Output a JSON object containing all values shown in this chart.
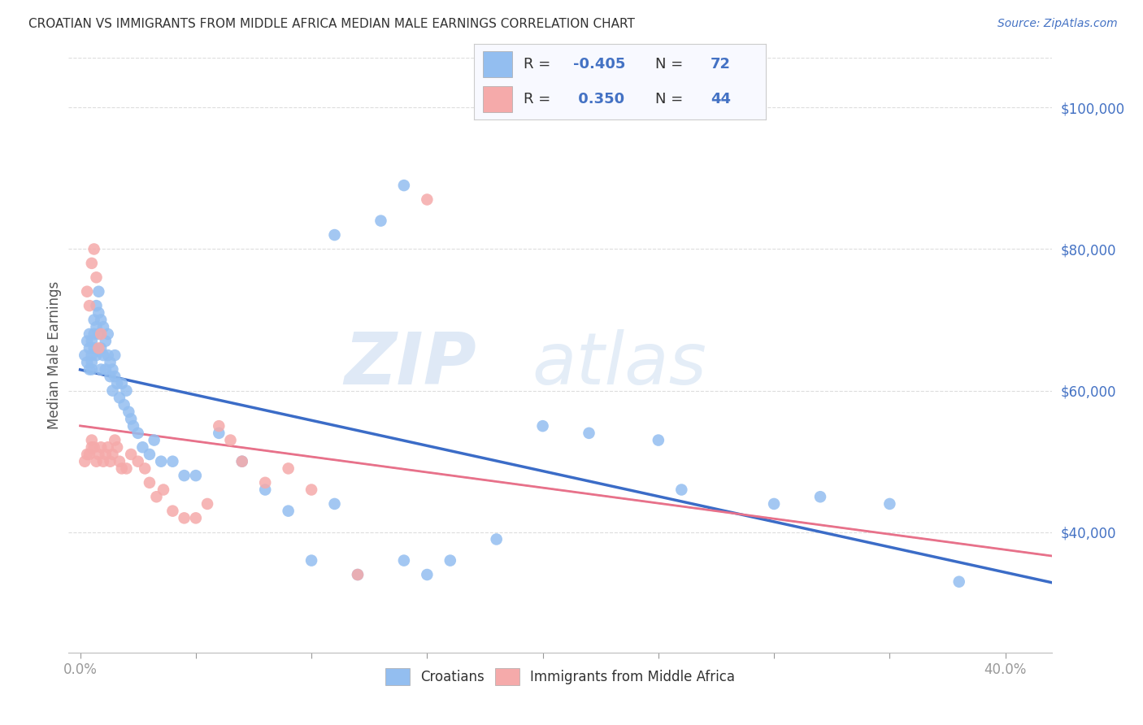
{
  "title": "CROATIAN VS IMMIGRANTS FROM MIDDLE AFRICA MEDIAN MALE EARNINGS CORRELATION CHART",
  "source": "Source: ZipAtlas.com",
  "ylabel": "Median Male Earnings",
  "xtick_show_labels": [
    0.0,
    0.4
  ],
  "xtick_show_strs": [
    "0.0%",
    "40.0%"
  ],
  "xtick_minor": [
    0.05,
    0.1,
    0.15,
    0.2,
    0.25,
    0.3,
    0.35
  ],
  "ytick_labels": [
    "$40,000",
    "$60,000",
    "$80,000",
    "$100,000"
  ],
  "ytick_vals": [
    40000,
    60000,
    80000,
    100000
  ],
  "ylim": [
    23000,
    107000
  ],
  "xlim": [
    -0.005,
    0.42
  ],
  "blue_color": "#93BEF0",
  "pink_color": "#F5AAAA",
  "blue_line_color": "#3B6CC7",
  "pink_line_color": "#E8718A",
  "gray_dashed_color": "#BBBBBB",
  "R_blue": -0.405,
  "N_blue": 72,
  "R_pink": 0.35,
  "N_pink": 44,
  "watermark_zip": "ZIP",
  "watermark_atlas": "atlas",
  "background_color": "#FFFFFF",
  "grid_color": "#DDDDDD",
  "title_color": "#333333",
  "axis_label_color": "#555555",
  "ytick_color": "#4472C4",
  "source_color": "#4472C4",
  "legend_text_color": "#333333",
  "legend_num_color": "#4472C4",
  "blue_scatter_x": [
    0.002,
    0.003,
    0.003,
    0.004,
    0.004,
    0.004,
    0.005,
    0.005,
    0.005,
    0.005,
    0.006,
    0.006,
    0.006,
    0.007,
    0.007,
    0.007,
    0.008,
    0.008,
    0.008,
    0.009,
    0.009,
    0.009,
    0.01,
    0.01,
    0.011,
    0.011,
    0.012,
    0.012,
    0.013,
    0.013,
    0.014,
    0.014,
    0.015,
    0.015,
    0.016,
    0.017,
    0.018,
    0.019,
    0.02,
    0.021,
    0.022,
    0.023,
    0.025,
    0.027,
    0.03,
    0.032,
    0.035,
    0.04,
    0.045,
    0.05,
    0.06,
    0.07,
    0.08,
    0.09,
    0.1,
    0.11,
    0.12,
    0.14,
    0.15,
    0.16,
    0.18,
    0.2,
    0.22,
    0.25,
    0.26,
    0.3,
    0.32,
    0.35,
    0.38,
    0.11,
    0.13,
    0.14
  ],
  "blue_scatter_y": [
    65000,
    64000,
    67000,
    63000,
    66000,
    68000,
    65000,
    67000,
    63000,
    64000,
    66000,
    68000,
    70000,
    72000,
    69000,
    65000,
    71000,
    68000,
    74000,
    70000,
    66000,
    63000,
    69000,
    65000,
    67000,
    63000,
    65000,
    68000,
    64000,
    62000,
    63000,
    60000,
    62000,
    65000,
    61000,
    59000,
    61000,
    58000,
    60000,
    57000,
    56000,
    55000,
    54000,
    52000,
    51000,
    53000,
    50000,
    50000,
    48000,
    48000,
    54000,
    50000,
    46000,
    43000,
    36000,
    44000,
    34000,
    36000,
    34000,
    36000,
    39000,
    55000,
    54000,
    53000,
    46000,
    44000,
    45000,
    44000,
    33000,
    82000,
    84000,
    89000
  ],
  "pink_scatter_x": [
    0.002,
    0.003,
    0.004,
    0.005,
    0.005,
    0.006,
    0.007,
    0.008,
    0.009,
    0.01,
    0.011,
    0.012,
    0.013,
    0.014,
    0.015,
    0.016,
    0.017,
    0.018,
    0.02,
    0.022,
    0.025,
    0.028,
    0.03,
    0.033,
    0.036,
    0.04,
    0.045,
    0.05,
    0.055,
    0.06,
    0.065,
    0.07,
    0.08,
    0.09,
    0.1,
    0.12,
    0.003,
    0.004,
    0.005,
    0.006,
    0.007,
    0.008,
    0.009,
    0.15
  ],
  "pink_scatter_y": [
    50000,
    51000,
    51000,
    52000,
    53000,
    52000,
    50000,
    51000,
    52000,
    50000,
    51000,
    52000,
    50000,
    51000,
    53000,
    52000,
    50000,
    49000,
    49000,
    51000,
    50000,
    49000,
    47000,
    45000,
    46000,
    43000,
    42000,
    42000,
    44000,
    55000,
    53000,
    50000,
    47000,
    49000,
    46000,
    34000,
    74000,
    72000,
    78000,
    80000,
    76000,
    66000,
    68000,
    87000
  ]
}
